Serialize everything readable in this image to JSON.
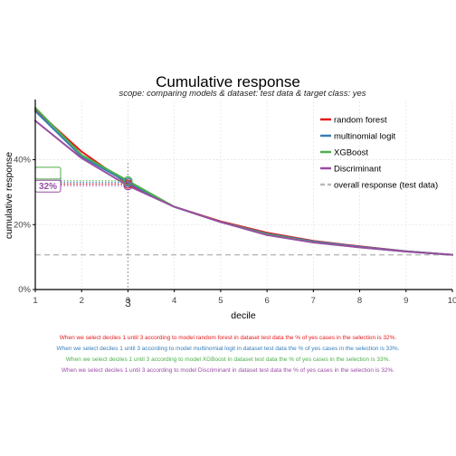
{
  "chart_data": {
    "type": "line",
    "title": "Cumulative response",
    "subtitle": "scope: comparing models & dataset: test data & target class: yes",
    "xlabel": "decile",
    "ylabel": "cumulative response",
    "x": [
      1,
      2,
      3,
      4,
      5,
      6,
      7,
      8,
      9,
      10
    ],
    "x_tick_labels": [
      "1",
      "2",
      "3",
      "4",
      "5",
      "6",
      "7",
      "8",
      "9",
      "10"
    ],
    "xlim": [
      1,
      10
    ],
    "ylim": [
      0,
      0.58
    ],
    "y_ticks": [
      0,
      0.2,
      0.4
    ],
    "y_tick_labels": [
      "0%",
      "20%",
      "40%"
    ],
    "highlight_decile": 3,
    "highlight_decile_label": "3",
    "series": [
      {
        "name": "random forest",
        "color": "#E41A1C",
        "values": [
          0.555,
          0.425,
          0.325,
          0.255,
          0.21,
          0.175,
          0.15,
          0.133,
          0.118,
          0.107
        ]
      },
      {
        "name": "multinomial logit",
        "color": "#377EB8",
        "values": [
          0.55,
          0.41,
          0.33,
          0.255,
          0.208,
          0.172,
          0.148,
          0.132,
          0.118,
          0.107
        ]
      },
      {
        "name": "XGBoost",
        "color": "#4DAF4A",
        "values": [
          0.56,
          0.415,
          0.335,
          0.255,
          0.208,
          0.17,
          0.146,
          0.13,
          0.117,
          0.107
        ]
      },
      {
        "name": "Discriminant",
        "color": "#984EA3",
        "values": [
          0.52,
          0.405,
          0.32,
          0.255,
          0.208,
          0.168,
          0.145,
          0.13,
          0.117,
          0.107
        ]
      }
    ],
    "reference": {
      "name": "overall response (test data)",
      "color": "#BBBBBB",
      "value": 0.107
    },
    "callout_label": "32%",
    "legend_position": "top-right",
    "grid": true,
    "annotations": [
      {
        "text": "When we select deciles 1 until 3 according to model random forest in dataset test data the % of yes cases in the selection is 32%.",
        "color": "#E41A1C"
      },
      {
        "text": "When we select deciles 1 until 3 according to model multinomial logit in dataset test data the % of yes cases in the selection is 33%.",
        "color": "#377EB8"
      },
      {
        "text": "When we select deciles 1 until 3 according to model XGBoost in dataset test data the % of yes cases in the selection is 33%.",
        "color": "#4DAF4A"
      },
      {
        "text": "When we select deciles 1 until 3 according to model Discriminant in dataset test data the % of yes cases in the selection is 32%.",
        "color": "#984EA3"
      }
    ]
  }
}
